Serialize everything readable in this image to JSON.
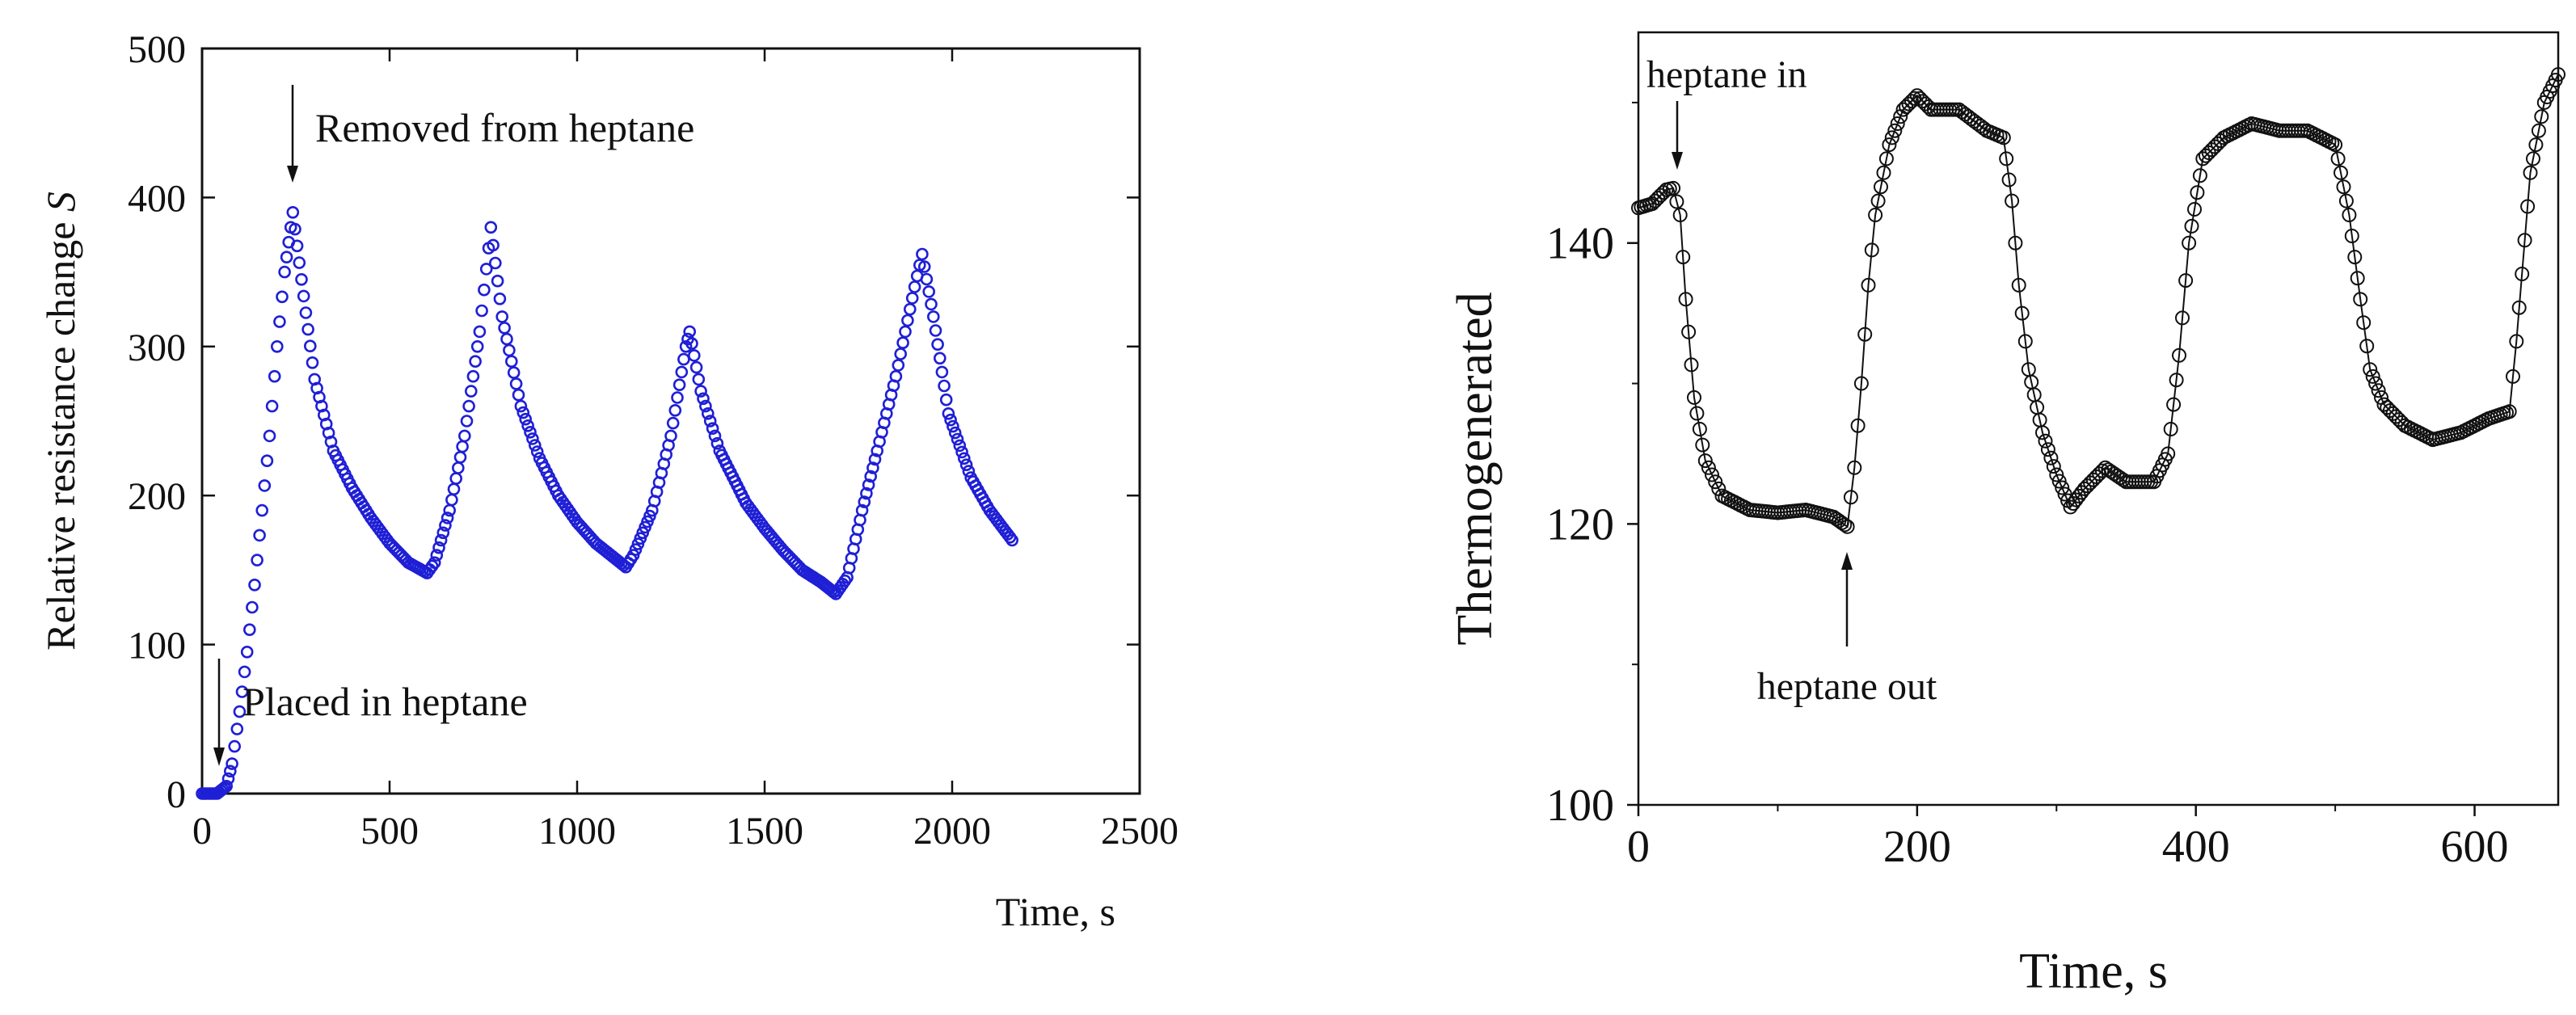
{
  "colors": {
    "left_series": "#1f1fd6",
    "right_series": "#111111",
    "axis": "#111111"
  },
  "chart_data": [
    {
      "type": "scatter",
      "title": "",
      "xlabel": "Time, s",
      "ylabel_main": "Relative resistance change ",
      "ylabel_var": "S",
      "xlim": [
        0,
        2500
      ],
      "ylim": [
        0,
        500
      ],
      "x_ticks": [
        0,
        500,
        1000,
        1500,
        2000,
        2500
      ],
      "y_ticks": [
        0,
        100,
        200,
        300,
        400,
        500
      ],
      "x_tick_labels": [
        "0",
        "500",
        "1000",
        "1500",
        "2000",
        "2500"
      ],
      "y_tick_labels": [
        "0",
        "100",
        "200",
        "300",
        "400",
        "500"
      ],
      "grid": false,
      "marker": "circle",
      "series": [
        {
          "name": "S",
          "points": [
            [
              0,
              0
            ],
            [
              40,
              0
            ],
            [
              50,
              2
            ],
            [
              65,
              5
            ],
            [
              80,
              20
            ],
            [
              100,
              55
            ],
            [
              120,
              95
            ],
            [
              140,
              140
            ],
            [
              160,
              190
            ],
            [
              180,
              240
            ],
            [
              200,
              300
            ],
            [
              220,
              350
            ],
            [
              242,
              390
            ],
            [
              265,
              345
            ],
            [
              300,
              278
            ],
            [
              350,
              230
            ],
            [
              400,
              205
            ],
            [
              450,
              185
            ],
            [
              500,
              168
            ],
            [
              550,
              155
            ],
            [
              600,
              148
            ],
            [
              620,
              155
            ],
            [
              660,
              190
            ],
            [
              700,
              240
            ],
            [
              740,
              310
            ],
            [
              770,
              380
            ],
            [
              800,
              320
            ],
            [
              850,
              260
            ],
            [
              900,
              225
            ],
            [
              950,
              200
            ],
            [
              1000,
              182
            ],
            [
              1050,
              168
            ],
            [
              1100,
              158
            ],
            [
              1130,
              152
            ],
            [
              1150,
              160
            ],
            [
              1200,
              190
            ],
            [
              1250,
              240
            ],
            [
              1290,
              300
            ],
            [
              1300,
              310
            ],
            [
              1330,
              270
            ],
            [
              1380,
              230
            ],
            [
              1450,
              195
            ],
            [
              1500,
              178
            ],
            [
              1550,
              163
            ],
            [
              1600,
              150
            ],
            [
              1650,
              142
            ],
            [
              1690,
              134
            ],
            [
              1720,
              145
            ],
            [
              1760,
              190
            ],
            [
              1800,
              230
            ],
            [
              1850,
              280
            ],
            [
              1900,
              340
            ],
            [
              1920,
              362
            ],
            [
              1950,
              320
            ],
            [
              1990,
              255
            ],
            [
              2050,
              212
            ],
            [
              2100,
              190
            ],
            [
              2160,
              170
            ]
          ]
        }
      ],
      "annotations": [
        {
          "text": "Removed from heptane",
          "x": 240,
          "y": 390
        },
        {
          "text": "Placed in heptane",
          "x": 40,
          "y": 0
        }
      ]
    },
    {
      "type": "line",
      "title": "",
      "xlabel": "Time, s",
      "ylabel": "Thermogenerated",
      "xlim": [
        0,
        660
      ],
      "ylim": [
        100,
        155
      ],
      "x_ticks": [
        0,
        200,
        400,
        600
      ],
      "y_ticks": [
        100,
        120,
        140
      ],
      "x_tick_labels": [
        "0",
        "200",
        "400",
        "600"
      ],
      "y_tick_labels": [
        "100",
        "120",
        "140"
      ],
      "grid": false,
      "marker": "open-circle",
      "series": [
        {
          "name": "Thermogenerated",
          "points": [
            [
              0,
              142.5
            ],
            [
              10,
              142.8
            ],
            [
              20,
              143.8
            ],
            [
              25,
              143.9
            ],
            [
              30,
              142.0
            ],
            [
              34,
              136.0
            ],
            [
              40,
              129.0
            ],
            [
              48,
              124.5
            ],
            [
              60,
              122.0
            ],
            [
              80,
              121.0
            ],
            [
              100,
              120.8
            ],
            [
              120,
              121.0
            ],
            [
              140,
              120.5
            ],
            [
              150,
              119.8
            ],
            [
              155,
              124.0
            ],
            [
              160,
              130.0
            ],
            [
              165,
              137.0
            ],
            [
              170,
              142.0
            ],
            [
              180,
              147.0
            ],
            [
              190,
              149.5
            ],
            [
              200,
              150.5
            ],
            [
              210,
              149.5
            ],
            [
              230,
              149.5
            ],
            [
              250,
              148.0
            ],
            [
              262,
              147.5
            ],
            [
              268,
              143.0
            ],
            [
              273,
              137.0
            ],
            [
              280,
              131.0
            ],
            [
              290,
              126.5
            ],
            [
              300,
              123.5
            ],
            [
              310,
              121.2
            ],
            [
              320,
              122.5
            ],
            [
              335,
              124.0
            ],
            [
              350,
              123.0
            ],
            [
              370,
              123.0
            ],
            [
              380,
              125.0
            ],
            [
              388,
              132.0
            ],
            [
              395,
              140.0
            ],
            [
              405,
              146.0
            ],
            [
              420,
              147.5
            ],
            [
              440,
              148.5
            ],
            [
              460,
              148.0
            ],
            [
              480,
              148.0
            ],
            [
              500,
              147.0
            ],
            [
              510,
              142.0
            ],
            [
              518,
              136.0
            ],
            [
              525,
              131.0
            ],
            [
              535,
              128.5
            ],
            [
              550,
              127.0
            ],
            [
              570,
              126.0
            ],
            [
              590,
              126.5
            ],
            [
              610,
              127.5
            ],
            [
              625,
              128.0
            ],
            [
              630,
              133.0
            ],
            [
              640,
              145.0
            ],
            [
              650,
              150.0
            ],
            [
              660,
              152.0
            ]
          ]
        }
      ],
      "annotations": [
        {
          "text": "heptane in",
          "x": 25,
          "y": 144
        },
        {
          "text": "heptane out",
          "x": 152,
          "y": 120
        }
      ]
    }
  ]
}
